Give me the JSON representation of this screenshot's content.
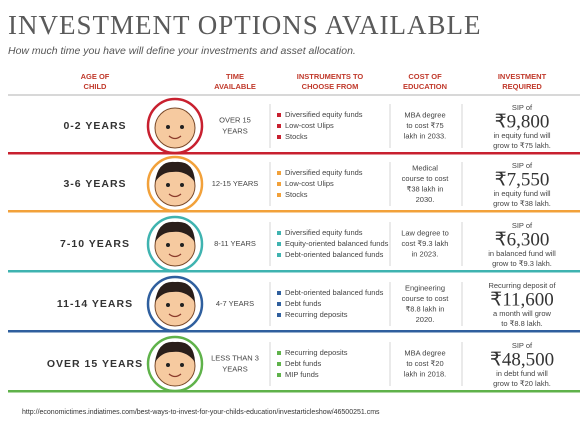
{
  "header": {
    "title": "INVESTMENT OPTIONS AVAILABLE",
    "subtitle": "How much time you have will define your investments and asset allocation."
  },
  "columns": [
    [
      "AGE OF",
      "CHILD"
    ],
    [
      "TIME",
      "AVAILABLE"
    ],
    [
      "INSTRUMENTS TO",
      "CHOOSE FROM"
    ],
    [
      "COST OF",
      "EDUCATION"
    ],
    [
      "INVESTMENT",
      "REQUIRED"
    ]
  ],
  "rows": [
    {
      "age": "0-2 YEARS",
      "time": [
        "OVER 15",
        "YEARS"
      ],
      "instruments": [
        "Diversified equity funds",
        "Low-cost Ulips",
        "Stocks"
      ],
      "cost": [
        "MBA degree",
        "to cost ₹75",
        "lakh in 2033."
      ],
      "investment": {
        "before": "SIP of",
        "amount": "₹9,800",
        "after": [
          "in equity fund will",
          "grow to ₹75 lakh."
        ]
      }
    },
    {
      "age": "3-6 YEARS",
      "time": [
        "12-15 YEARS"
      ],
      "instruments": [
        "Diversified equity funds",
        "Low-cost Ulips",
        "Stocks"
      ],
      "cost": [
        "Medical",
        "course to cost",
        "₹38 lakh in",
        "2030."
      ],
      "investment": {
        "before": "SIP of",
        "amount": "₹7,550",
        "after": [
          "in equity fund will",
          "grow to ₹38 lakh."
        ]
      }
    },
    {
      "age": "7-10 YEARS",
      "time": [
        "8-11 YEARS"
      ],
      "instruments": [
        "Diversified equity funds",
        "Equity-oriented balanced funds",
        "Debt-oriented balanced funds"
      ],
      "cost": [
        "Law degree to",
        "cost ₹9.3 lakh",
        "in 2023."
      ],
      "investment": {
        "before": "SIP of",
        "amount": "₹6,300",
        "after": [
          "in balanced fund will",
          "grow to ₹9.3 lakh."
        ]
      }
    },
    {
      "age": "11-14 YEARS",
      "time": [
        "4-7 YEARS"
      ],
      "instruments": [
        "Debt-oriented balanced funds",
        "Debt funds",
        "Recurring deposits"
      ],
      "cost": [
        "Engineering",
        "course to cost",
        "₹8.8 lakh in",
        "2020."
      ],
      "investment": {
        "before": "Recurring deposit of",
        "amount": "₹11,600",
        "after": [
          "a month will grow",
          "to ₹8.8 lakh."
        ]
      }
    },
    {
      "age": "OVER 15 YEARS",
      "time": [
        "LESS THAN 3",
        "YEARS"
      ],
      "instruments": [
        "Recurring deposits",
        "Debt funds",
        "MIP funds"
      ],
      "cost": [
        "MBA degree",
        "to cost ₹20",
        "lakh in 2018."
      ],
      "investment": {
        "before": "SIP of",
        "amount": "₹48,500",
        "after": [
          "in debt fund will",
          "grow to ₹20 lakh."
        ]
      }
    }
  ],
  "footer": {
    "source": "http://economictimes.indiatimes.com/best-ways-to-invest-for-your-childs-education/investarticleshow/46500251.cms"
  }
}
